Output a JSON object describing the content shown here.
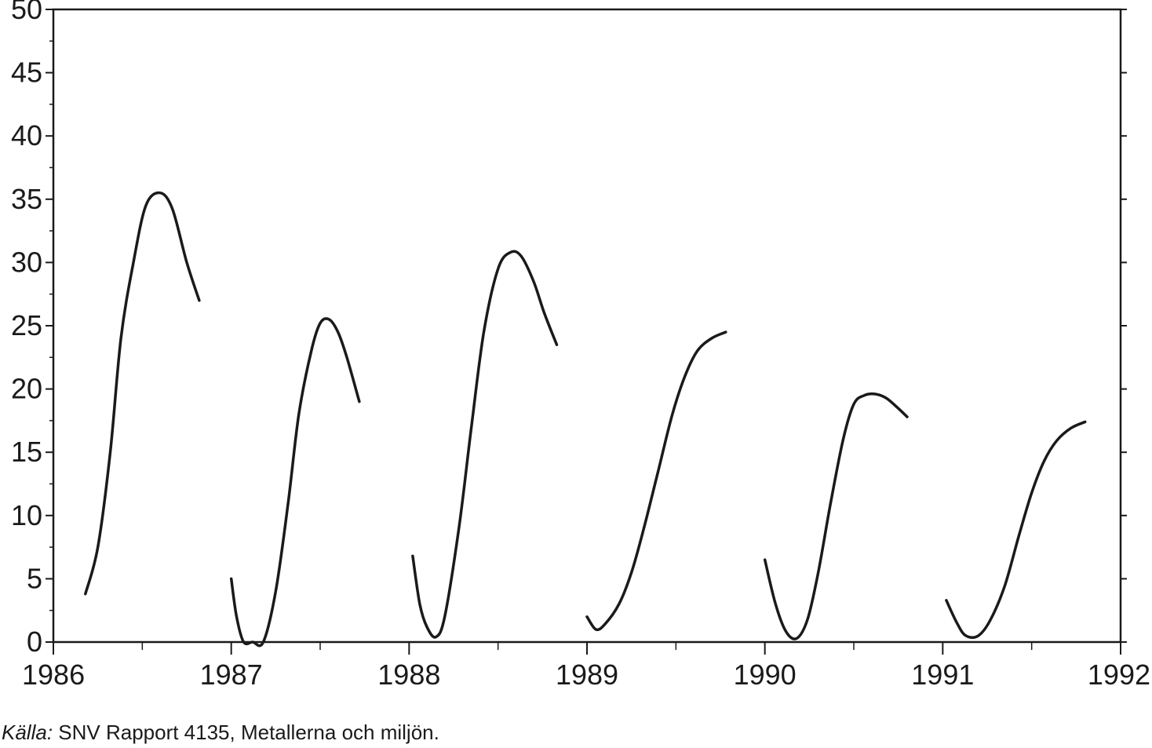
{
  "chart_data": {
    "type": "line",
    "title": "",
    "xlabel": "",
    "ylabel": "",
    "xlim": [
      1986,
      1992
    ],
    "ylim": [
      0,
      50
    ],
    "x_ticks": [
      1986,
      1987,
      1988,
      1989,
      1990,
      1991,
      1992
    ],
    "x_tick_labels": [
      "1986",
      "1987",
      "1988",
      "1989",
      "1990",
      "1991",
      "1992"
    ],
    "y_ticks": [
      0,
      5,
      10,
      15,
      20,
      25,
      30,
      35,
      40,
      45,
      50
    ],
    "y_tick_labels": [
      "0",
      "5",
      "10",
      "15",
      "20",
      "25",
      "30",
      "35",
      "40",
      "45",
      "50"
    ],
    "grid": false,
    "legend": "none",
    "line_color": "#1a1a1a",
    "series": [
      {
        "x": [
          1986.18,
          1986.25,
          1986.32,
          1986.38,
          1986.45,
          1986.52,
          1986.6,
          1986.67,
          1986.75,
          1986.82
        ],
        "y": [
          3.8,
          7.5,
          15.0,
          24.0,
          30.0,
          34.5,
          35.5,
          34.2,
          30.0,
          27.0
        ]
      },
      {
        "x": [
          1987.0,
          1987.03,
          1987.07,
          1987.12,
          1987.18,
          1987.25,
          1987.32,
          1987.38,
          1987.45,
          1987.5,
          1987.55,
          1987.6,
          1987.65,
          1987.72
        ],
        "y": [
          5.0,
          2.0,
          0.0,
          0.0,
          0.0,
          4.0,
          11.0,
          18.0,
          23.0,
          25.2,
          25.5,
          24.5,
          22.5,
          19.0
        ]
      },
      {
        "x": [
          1988.02,
          1988.06,
          1988.1,
          1988.15,
          1988.2,
          1988.28,
          1988.35,
          1988.42,
          1988.5,
          1988.57,
          1988.63,
          1988.7,
          1988.76,
          1988.83
        ],
        "y": [
          6.8,
          3.0,
          1.2,
          0.4,
          2.0,
          9.0,
          17.0,
          24.5,
          29.5,
          30.8,
          30.5,
          28.5,
          26.0,
          23.5
        ]
      },
      {
        "x": [
          1989.0,
          1989.05,
          1989.1,
          1989.18,
          1989.25,
          1989.32,
          1989.4,
          1989.48,
          1989.55,
          1989.62,
          1989.7,
          1989.78
        ],
        "y": [
          2.0,
          1.0,
          1.4,
          3.0,
          5.5,
          9.0,
          13.5,
          18.0,
          21.0,
          23.0,
          24.0,
          24.5
        ]
      },
      {
        "x": [
          1990.0,
          1990.06,
          1990.12,
          1990.18,
          1990.24,
          1990.3,
          1990.37,
          1990.44,
          1990.5,
          1990.56,
          1990.62,
          1990.68,
          1990.74,
          1990.8
        ],
        "y": [
          6.5,
          3.0,
          0.8,
          0.3,
          1.8,
          5.5,
          11.0,
          16.0,
          18.8,
          19.5,
          19.6,
          19.3,
          18.6,
          17.8
        ]
      },
      {
        "x": [
          1991.02,
          1991.08,
          1991.13,
          1991.2,
          1991.27,
          1991.35,
          1991.43,
          1991.5,
          1991.57,
          1991.64,
          1991.72,
          1991.8
        ],
        "y": [
          3.3,
          1.5,
          0.5,
          0.5,
          1.8,
          4.5,
          8.5,
          11.8,
          14.3,
          15.9,
          16.9,
          17.4
        ]
      }
    ]
  },
  "source": {
    "label": "Källa:",
    "text": " SNV Rapport 4135, Metallerna och miljön."
  }
}
